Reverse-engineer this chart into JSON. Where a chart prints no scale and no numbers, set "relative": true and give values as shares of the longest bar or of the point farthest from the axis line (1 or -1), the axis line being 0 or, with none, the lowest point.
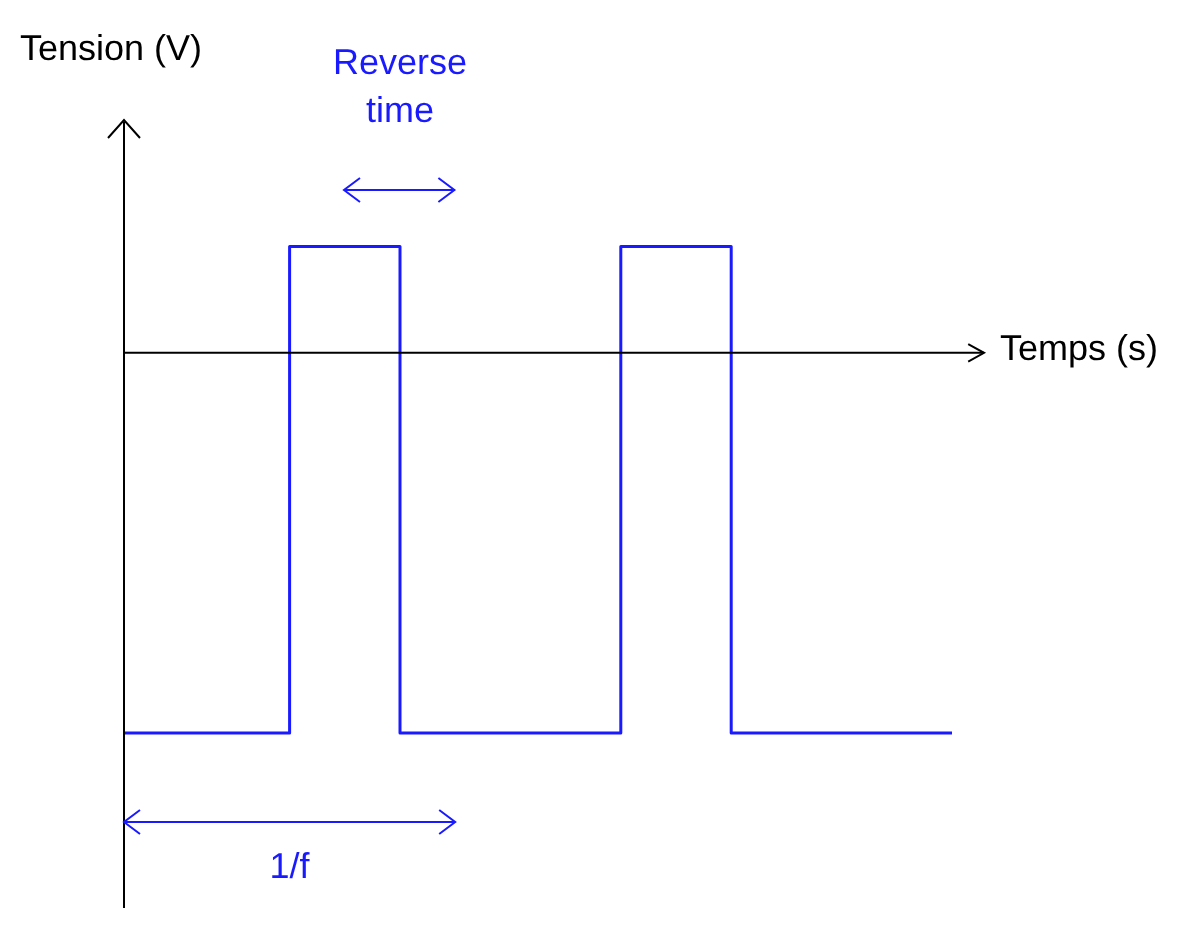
{
  "chart_data": {
    "type": "step",
    "relative": true,
    "xlabel": "Temps (s)",
    "ylabel": "Tension (V)",
    "categories": [
      null,
      null,
      null,
      null,
      null,
      null,
      null,
      null,
      null,
      null,
      null,
      null,
      null,
      null,
      null,
      null
    ],
    "values": [
      -1,
      -1,
      -1,
      -1,
      0.28,
      0.28,
      -1,
      -1,
      -1,
      -1,
      0.28,
      0.28,
      -1,
      -1,
      -1,
      -1
    ],
    "color": "#1a1aff",
    "legend": false,
    "marker": "none",
    "annotations": [
      "Reverse time",
      "1/f"
    ]
  }
}
